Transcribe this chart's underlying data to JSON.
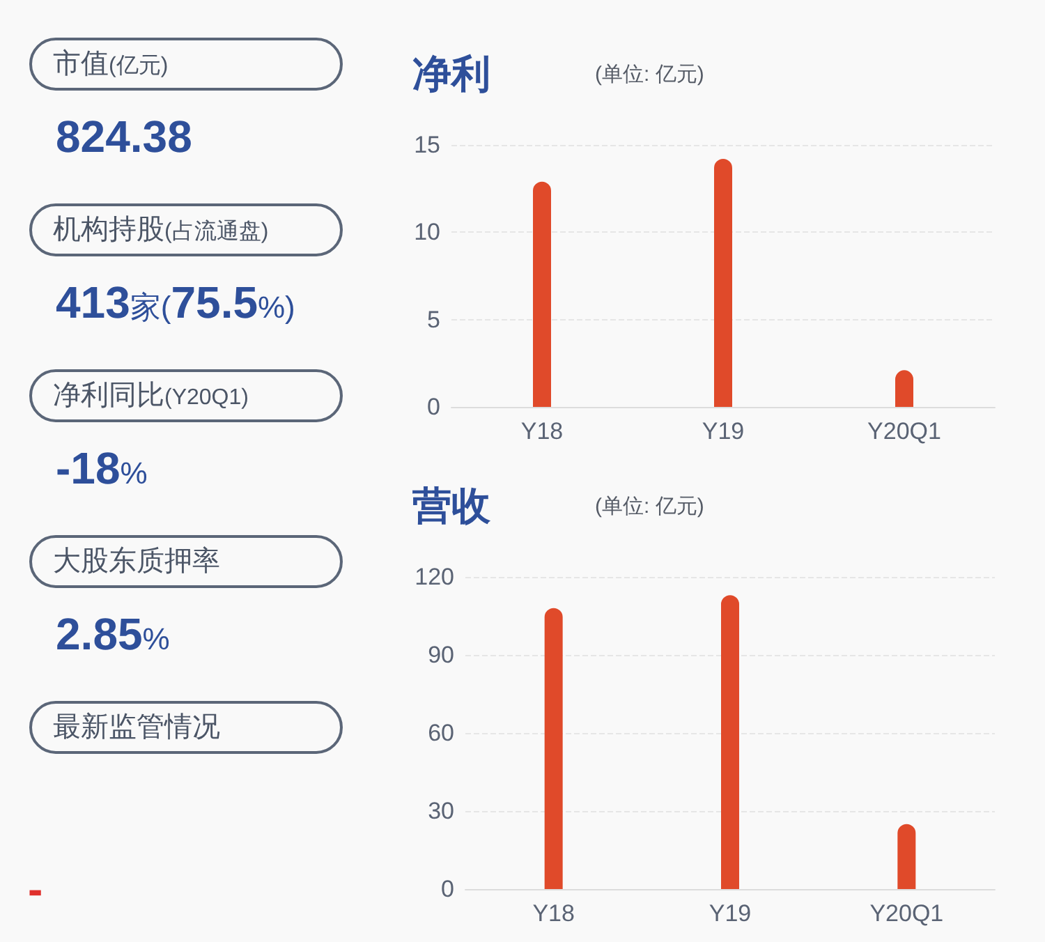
{
  "chart_data": [
    {
      "type": "other",
      "annotations": [
        "市值(亿元)",
        "824.38",
        "机构持股(占流通盘)",
        "413家(75.5%)",
        "净利同比(Y20Q1)",
        "-18%",
        "大股东质押率",
        "2.85%",
        "最新监管情况",
        "-"
      ]
    },
    {
      "type": "bar",
      "title": "净利",
      "subtitle": "(单位: 亿元)",
      "categories": [
        "Y18",
        "Y19",
        "Y20Q1"
      ],
      "values": [
        12.9,
        14.2,
        2.1
      ],
      "color": "#e04a2a",
      "ylim": [
        0,
        15
      ],
      "yticks": [
        0,
        5,
        10,
        15
      ],
      "grid": "y"
    },
    {
      "type": "bar",
      "title": "营收",
      "subtitle": "(单位: 亿元)",
      "categories": [
        "Y18",
        "Y19",
        "Y20Q1"
      ],
      "values": [
        108,
        113,
        25
      ],
      "color": "#e04a2a",
      "ylim": [
        0,
        120
      ],
      "yticks": [
        0,
        30,
        60,
        90,
        120
      ],
      "grid": "y"
    }
  ]
}
